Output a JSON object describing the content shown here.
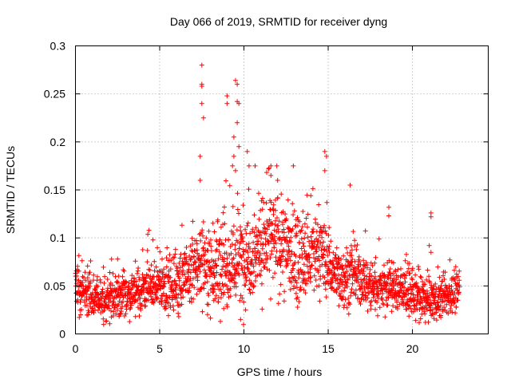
{
  "chart_data": {
    "type": "scatter",
    "title": "Day 066 of 2019, SRMTID for receiver dyng",
    "xlabel": "GPS time / hours",
    "ylabel": "SRMTID / TECUs",
    "xlim": [
      0,
      24.5
    ],
    "ylim": [
      0,
      0.3
    ],
    "grid": true,
    "marker": "+",
    "color": "#ff0000",
    "x_ticks": [
      {
        "value": 0,
        "label": "0"
      },
      {
        "value": 5,
        "label": "5"
      },
      {
        "value": 10,
        "label": "10"
      },
      {
        "value": 15,
        "label": "15"
      },
      {
        "value": 20,
        "label": "20"
      }
    ],
    "y_ticks": [
      {
        "value": 0,
        "label": "0"
      },
      {
        "value": 0.05,
        "label": "0.05"
      },
      {
        "value": 0.1,
        "label": "0.1"
      },
      {
        "value": 0.15,
        "label": "0.15"
      },
      {
        "value": 0.2,
        "label": "0.2"
      },
      {
        "value": 0.25,
        "label": "0.25"
      },
      {
        "value": 0.3,
        "label": "0.3"
      }
    ],
    "x_range": [
      0,
      22.8
    ],
    "baseline_profile": [
      [
        0.0,
        0.055
      ],
      [
        0.5,
        0.04
      ],
      [
        1.5,
        0.035
      ],
      [
        2.5,
        0.04
      ],
      [
        3.5,
        0.042
      ],
      [
        4.5,
        0.05
      ],
      [
        5.5,
        0.05
      ],
      [
        6.5,
        0.058
      ],
      [
        7.5,
        0.075
      ],
      [
        8.5,
        0.065
      ],
      [
        9.5,
        0.075
      ],
      [
        10.5,
        0.085
      ],
      [
        11.5,
        0.1
      ],
      [
        12.5,
        0.09
      ],
      [
        13.5,
        0.075
      ],
      [
        14.5,
        0.085
      ],
      [
        15.5,
        0.06
      ],
      [
        16.5,
        0.06
      ],
      [
        17.5,
        0.05
      ],
      [
        18.5,
        0.05
      ],
      [
        19.5,
        0.045
      ],
      [
        20.5,
        0.035
      ],
      [
        21.5,
        0.035
      ],
      [
        22.8,
        0.045
      ]
    ],
    "spread_profile": [
      [
        0.0,
        0.014
      ],
      [
        5.0,
        0.016
      ],
      [
        7.0,
        0.025
      ],
      [
        9.0,
        0.03
      ],
      [
        12.0,
        0.032
      ],
      [
        14.0,
        0.03
      ],
      [
        15.5,
        0.02
      ],
      [
        18.0,
        0.018
      ],
      [
        20.0,
        0.015
      ],
      [
        22.8,
        0.013
      ]
    ],
    "sample_count": 2200,
    "outliers": [
      [
        7.5,
        0.28
      ],
      [
        7.5,
        0.26
      ],
      [
        7.5,
        0.258
      ],
      [
        7.5,
        0.24
      ],
      [
        7.6,
        0.225
      ],
      [
        7.4,
        0.185
      ],
      [
        7.4,
        0.16
      ],
      [
        9.0,
        0.248
      ],
      [
        9.0,
        0.24
      ],
      [
        9.4,
        0.205
      ],
      [
        9.4,
        0.185
      ],
      [
        9.5,
        0.264
      ],
      [
        9.6,
        0.26
      ],
      [
        9.6,
        0.242
      ],
      [
        9.7,
        0.24
      ],
      [
        9.6,
        0.22
      ],
      [
        9.7,
        0.195
      ],
      [
        9.5,
        0.17
      ],
      [
        10.2,
        0.19
      ],
      [
        10.3,
        0.175
      ],
      [
        11.6,
        0.175
      ],
      [
        11.6,
        0.165
      ],
      [
        12.0,
        0.16
      ],
      [
        14.8,
        0.19
      ],
      [
        14.9,
        0.185
      ],
      [
        14.8,
        0.17
      ],
      [
        16.3,
        0.155
      ],
      [
        18.6,
        0.132
      ],
      [
        18.6,
        0.123
      ],
      [
        21.1,
        0.126
      ],
      [
        21.1,
        0.122
      ],
      [
        21.0,
        0.092
      ],
      [
        21.1,
        0.085
      ],
      [
        8.6,
        0.013
      ],
      [
        9.8,
        0.015
      ],
      [
        10.1,
        0.025
      ],
      [
        2.5,
        0.078
      ],
      [
        4.6,
        0.098
      ]
    ]
  }
}
